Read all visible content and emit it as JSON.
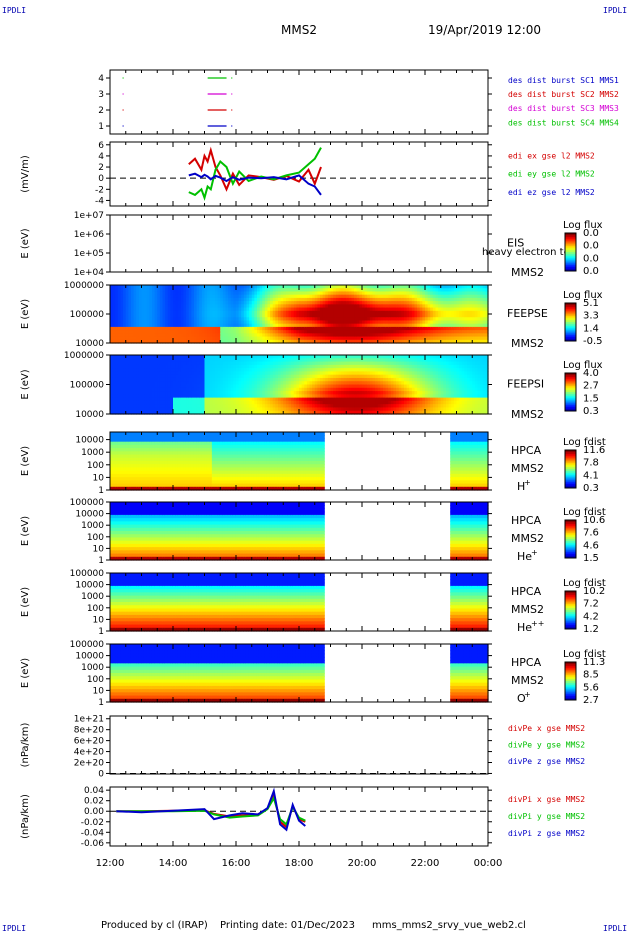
{
  "header": {
    "mission": "MMS2",
    "datetime": "19/Apr/2019 12:00",
    "corner_mark": "IPDLI"
  },
  "footer": {
    "produced_by": "Produced by cl (IRAP)",
    "printing_date": "Printing date: 01/Dec/2023",
    "file_name": "mms_mms2_srvy_vue_web2.cl"
  },
  "time_axis": {
    "ticks": [
      "12:00",
      "14:00",
      "16:00",
      "18:00",
      "20:00",
      "22:00",
      "00:00"
    ],
    "start_hour": 12,
    "end_hour": 24
  },
  "colors": {
    "mms1": "#0000c8",
    "mms2": "#d40000",
    "mms3": "#d400d4",
    "mms4": "#00c000",
    "axis": "#000000"
  },
  "chart_data": [
    {
      "type": "line",
      "panel": "burst",
      "yticks": [
        "1",
        "2",
        "3",
        "4"
      ],
      "ylim": [
        0.5,
        4.5
      ],
      "legend": [
        {
          "label": "des dist burst SC1 MMS1",
          "color": "#0000c8"
        },
        {
          "label": "des dist burst SC2 MMS2",
          "color": "#d40000"
        },
        {
          "label": "des dist burst SC3 MMS3",
          "color": "#d400d4"
        },
        {
          "label": "des dist burst SC4 MMS4",
          "color": "#00c000"
        }
      ],
      "series": [
        {
          "name": "des dist burst SC1 MMS1",
          "y": 1,
          "intervals": [
            [
              12.4,
              12.42
            ],
            [
              15.1,
              15.7
            ],
            [
              15.85,
              15.87
            ]
          ]
        },
        {
          "name": "des dist burst SC2 MMS2",
          "y": 2,
          "intervals": [
            [
              12.4,
              12.42
            ],
            [
              15.1,
              15.7
            ],
            [
              15.85,
              15.87
            ]
          ]
        },
        {
          "name": "des dist burst SC3 MMS3",
          "y": 3,
          "intervals": [
            [
              12.4,
              12.42
            ],
            [
              15.1,
              15.7
            ],
            [
              15.85,
              15.87
            ]
          ]
        },
        {
          "name": "des dist burst SC4 MMS4",
          "y": 4,
          "intervals": [
            [
              12.4,
              12.42
            ],
            [
              15.1,
              15.7
            ],
            [
              15.85,
              15.87
            ]
          ]
        }
      ]
    },
    {
      "type": "line",
      "panel": "edi",
      "ylabel": "(mV/m)",
      "yticks": [
        "-4",
        "-2",
        "0",
        "2",
        "4",
        "6"
      ],
      "ylim": [
        -5,
        6.5
      ],
      "legend": [
        {
          "label": "edi ex gse l2 MMS2",
          "color": "#d40000"
        },
        {
          "label": "edi ey gse l2 MMS2",
          "color": "#00c000"
        },
        {
          "label": "edi ez gse l2 MMS2",
          "color": "#0000c8"
        }
      ],
      "series": [
        {
          "name": "edi ex gse l2 MMS2",
          "x": [
            14.5,
            14.7,
            14.9,
            15.0,
            15.1,
            15.2,
            15.35,
            15.5,
            15.7,
            15.9,
            16.1,
            16.4,
            16.8,
            17.2,
            17.6,
            18.0,
            18.3,
            18.5,
            18.7
          ],
          "y": [
            2.5,
            3.5,
            1.5,
            4.0,
            3.0,
            5.0,
            2.0,
            0.5,
            -2.0,
            0.8,
            -1.2,
            0.5,
            0.2,
            -0.3,
            0.4,
            -0.6,
            1.5,
            -1.0,
            2.0
          ]
        },
        {
          "name": "edi ey gse l2 MMS2",
          "x": [
            14.5,
            14.7,
            14.9,
            15.0,
            15.1,
            15.2,
            15.35,
            15.5,
            15.7,
            15.9,
            16.1,
            16.4,
            16.8,
            17.2,
            17.6,
            18.0,
            18.3,
            18.5,
            18.7
          ],
          "y": [
            -2.5,
            -3.0,
            -2.0,
            -3.5,
            -1.5,
            -2.0,
            1.5,
            3.0,
            2.0,
            -1.0,
            1.2,
            -0.5,
            0.3,
            -0.2,
            0.5,
            1.0,
            2.5,
            3.5,
            5.5
          ]
        },
        {
          "name": "edi ez gse l2 MMS2",
          "x": [
            14.5,
            14.7,
            14.9,
            15.0,
            15.1,
            15.2,
            15.35,
            15.5,
            15.7,
            15.9,
            16.1,
            16.4,
            16.8,
            17.2,
            17.6,
            18.0,
            18.3,
            18.5,
            18.7
          ],
          "y": [
            0.5,
            0.8,
            0.2,
            0.6,
            0.3,
            -0.2,
            0.4,
            0.1,
            -0.5,
            0.2,
            -0.3,
            0.1,
            0.0,
            0.2,
            -0.2,
            0.5,
            -1.0,
            -1.5,
            -3.0
          ]
        }
      ]
    },
    {
      "type": "heatmap",
      "panel": "eis",
      "ylabel": "E (eV)",
      "yticks": [
        "1e+04",
        "1e+05",
        "1e+06",
        "1e+07"
      ],
      "ylim": [
        10000.0,
        10000000.0
      ],
      "labels": [
        "EIS",
        "MMS2"
      ],
      "overlay_text": "heavy electron to",
      "colorbar": {
        "title": "Log flux",
        "ticks": [
          "0.0",
          "0.0",
          "0.0",
          "0.0"
        ]
      },
      "coverage": []
    },
    {
      "type": "heatmap",
      "panel": "feepse",
      "ylabel": "E (eV)",
      "yticks": [
        "10000",
        "100000",
        "1000000"
      ],
      "ylim": [
        10000.0,
        1000000.0
      ],
      "labels": [
        "FEEPSE",
        "MMS2"
      ],
      "colorbar": {
        "title": "Log flux",
        "ticks": [
          "5.1",
          "3.3",
          "1.4",
          "-0.5"
        ]
      },
      "coverage": [
        [
          12,
          24
        ]
      ]
    },
    {
      "type": "heatmap",
      "panel": "feepsi",
      "ylabel": "E (eV)",
      "yticks": [
        "10000",
        "100000",
        "1000000"
      ],
      "ylim": [
        10000.0,
        1000000.0
      ],
      "labels": [
        "FEEPSI",
        "MMS2"
      ],
      "colorbar": {
        "title": "Log flux",
        "ticks": [
          "4.0",
          "2.7",
          "1.5",
          "0.3"
        ]
      },
      "coverage": [
        [
          12,
          24
        ]
      ]
    },
    {
      "type": "heatmap",
      "panel": "hpca_h",
      "ylabel": "E (eV)",
      "yticks": [
        "1",
        "10",
        "100",
        "1000",
        "10000"
      ],
      "ylim": [
        1,
        40000
      ],
      "labels": [
        "HPCA",
        "MMS2"
      ],
      "species": "H",
      "species_sup": "+",
      "colorbar": {
        "title": "Log fdist",
        "ticks": [
          "11.6",
          "7.8",
          "4.1",
          "0.3"
        ]
      },
      "coverage": [
        [
          12,
          18.8
        ],
        [
          22.8,
          24
        ]
      ]
    },
    {
      "type": "heatmap",
      "panel": "hpca_he",
      "ylabel": "E (eV)",
      "yticks": [
        "1",
        "10",
        "100",
        "1000",
        "10000",
        "100000"
      ],
      "ylim": [
        1,
        100000
      ],
      "labels": [
        "HPCA",
        "MMS2"
      ],
      "species": "He",
      "species_sup": "+",
      "colorbar": {
        "title": "Log fdist",
        "ticks": [
          "10.6",
          "7.6",
          "4.6",
          "1.5"
        ]
      },
      "coverage": [
        [
          12,
          18.8
        ],
        [
          22.8,
          24
        ]
      ]
    },
    {
      "type": "heatmap",
      "panel": "hpca_hepp",
      "ylabel": "E (eV)",
      "yticks": [
        "1",
        "10",
        "100",
        "1000",
        "10000",
        "100000"
      ],
      "ylim": [
        1,
        100000
      ],
      "labels": [
        "HPCA",
        "MMS2"
      ],
      "species": "He",
      "species_sup": "++",
      "colorbar": {
        "title": "Log fdist",
        "ticks": [
          "10.2",
          "7.2",
          "4.2",
          "1.2"
        ]
      },
      "coverage": [
        [
          12,
          18.8
        ],
        [
          22.8,
          24
        ]
      ]
    },
    {
      "type": "heatmap",
      "panel": "hpca_o",
      "ylabel": "E (eV)",
      "yticks": [
        "1",
        "10",
        "100",
        "1000",
        "10000",
        "100000"
      ],
      "ylim": [
        1,
        100000
      ],
      "labels": [
        "HPCA",
        "MMS2"
      ],
      "species": "O",
      "species_sup": "+",
      "colorbar": {
        "title": "Log fdist",
        "ticks": [
          "11.3",
          "8.5",
          "5.6",
          "2.7"
        ]
      },
      "coverage": [
        [
          12,
          18.8
        ],
        [
          22.8,
          24
        ]
      ]
    },
    {
      "type": "line",
      "panel": "divpe",
      "ylabel": "(nPa/km)",
      "yticks": [
        "0",
        "2e+20",
        "4e+20",
        "6e+20",
        "8e+20",
        "1e+21"
      ],
      "ylim": [
        -1e+19,
        1.05e+21
      ],
      "legend": [
        {
          "label": "divPe x gse MMS2",
          "color": "#d40000"
        },
        {
          "label": "divPe y gse MMS2",
          "color": "#00c000"
        },
        {
          "label": "divPe z gse MMS2",
          "color": "#0000c8"
        }
      ],
      "series": []
    },
    {
      "type": "line",
      "panel": "divpi",
      "ylabel": "(nPa/km)",
      "yticks": [
        "-0.06",
        "-0.04",
        "-0.02",
        "0.00",
        "0.02",
        "0.04"
      ],
      "ylim": [
        -0.066,
        0.046
      ],
      "legend": [
        {
          "label": "divPi x gse MMS2",
          "color": "#d40000"
        },
        {
          "label": "divPi y gse MMS2",
          "color": "#00c000"
        },
        {
          "label": "divPi z gse MMS2",
          "color": "#0000c8"
        }
      ],
      "series": [
        {
          "name": "divPi x gse MMS2",
          "x": [
            12.2,
            13.0,
            14.0,
            15.0,
            15.3,
            15.8,
            16.2,
            16.7,
            17.0,
            17.2,
            17.4,
            17.6,
            17.8,
            18.0,
            18.2
          ],
          "y": [
            0.0,
            0.0,
            0.001,
            0.002,
            -0.005,
            -0.01,
            -0.008,
            -0.006,
            0.005,
            0.03,
            -0.02,
            -0.03,
            0.01,
            -0.015,
            -0.02
          ]
        },
        {
          "name": "divPi y gse MMS2",
          "x": [
            12.2,
            13.0,
            14.0,
            15.0,
            15.3,
            15.8,
            16.2,
            16.7,
            17.0,
            17.2,
            17.4,
            17.6,
            17.8,
            18.0,
            18.2
          ],
          "y": [
            0.0,
            0.0,
            0.0,
            0.001,
            -0.006,
            -0.012,
            -0.01,
            -0.008,
            0.004,
            0.025,
            -0.015,
            -0.025,
            0.008,
            -0.012,
            -0.018
          ]
        },
        {
          "name": "divPi z gse MMS2",
          "x": [
            12.2,
            13.0,
            14.0,
            15.0,
            15.3,
            15.8,
            16.2,
            16.7,
            17.0,
            17.2,
            17.4,
            17.6,
            17.8,
            18.0,
            18.2
          ],
          "y": [
            0.0,
            -0.002,
            0.001,
            0.004,
            -0.015,
            -0.008,
            -0.004,
            -0.006,
            0.006,
            0.038,
            -0.025,
            -0.035,
            0.012,
            -0.018,
            -0.028
          ]
        }
      ]
    }
  ]
}
